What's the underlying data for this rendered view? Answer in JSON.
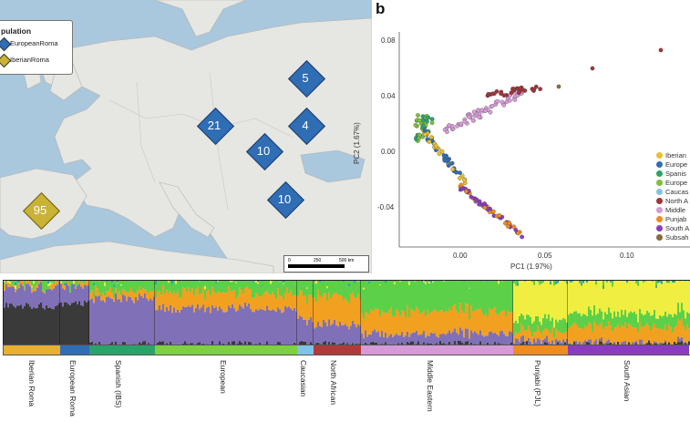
{
  "map": {
    "legend_title": "pulation",
    "legend_items": [
      {
        "label": "EuropeanRoma",
        "color": "#2f6db5"
      },
      {
        "label": "IberianRoma",
        "color": "#c9b335"
      }
    ],
    "markers": [
      {
        "label": "5",
        "group": "EuropeanRoma"
      },
      {
        "label": "21",
        "group": "EuropeanRoma"
      },
      {
        "label": "4",
        "group": "EuropeanRoma"
      },
      {
        "label": "10",
        "group": "EuropeanRoma"
      },
      {
        "label": "10",
        "group": "EuropeanRoma"
      },
      {
        "label": "95",
        "group": "IberianRoma"
      }
    ],
    "scale_ticks": [
      "0",
      "250",
      "500 km"
    ]
  },
  "panel_b_label": "b",
  "pca": {
    "xlabel": "PC1 (1.97%)",
    "ylabel": "PC2 (1.67%)",
    "x_ticks": [
      "0.00",
      "0.05",
      "0.10"
    ],
    "y_ticks": [
      "0.08",
      "0.04",
      "0.00",
      "-0.04"
    ],
    "legend": [
      {
        "label": "Iberian",
        "color": "#e8c030"
      },
      {
        "label": "Europe",
        "color": "#2f6db5"
      },
      {
        "label": "Spanis",
        "color": "#2aa36a"
      },
      {
        "label": "Europe",
        "color": "#7fbf3a"
      },
      {
        "label": "Caucas",
        "color": "#7fc3e8"
      },
      {
        "label": "North A",
        "color": "#a0343a"
      },
      {
        "label": "Middle",
        "color": "#d79ad8"
      },
      {
        "label": "Punjab",
        "color": "#f08c1e"
      },
      {
        "label": "South A",
        "color": "#8a3bc0"
      },
      {
        "label": "Subsah",
        "color": "#8a6a3a"
      }
    ]
  },
  "admixture": {
    "groups": [
      {
        "label": "Iberian Roma",
        "color": "#e8b030"
      },
      {
        "label": "European Roma",
        "color": "#2f6db5"
      },
      {
        "label": "Spanish (IBS)",
        "color": "#2aa36a"
      },
      {
        "label": "European",
        "color": "#7fd040"
      },
      {
        "label": "Caucasian",
        "color": "#7fc3e8"
      },
      {
        "label": "North African",
        "color": "#b03a3a"
      },
      {
        "label": "Middle Eastern",
        "color": "#d79ad8"
      },
      {
        "label": "Punjabi (PJL)",
        "color": "#f08c1e"
      },
      {
        "label": "South Asian",
        "color": "#8a3bc0"
      }
    ]
  }
}
